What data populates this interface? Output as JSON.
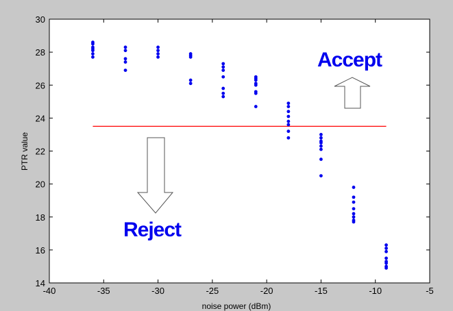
{
  "chart_data": {
    "type": "scatter",
    "xlabel": "noise power (dBm)",
    "ylabel": "PTR value",
    "xlim": [
      -40,
      -5
    ],
    "ylim": [
      14,
      30
    ],
    "xticks": [
      -40,
      -35,
      -30,
      -25,
      -20,
      -15,
      -10,
      -5
    ],
    "yticks": [
      14,
      16,
      18,
      20,
      22,
      24,
      26,
      28,
      30
    ],
    "grid": false,
    "series": [
      {
        "color": "#0000ee",
        "marker": "dot",
        "points": [
          [
            -36,
            28.6
          ],
          [
            -36,
            28.5
          ],
          [
            -36,
            28.3
          ],
          [
            -36,
            28.2
          ],
          [
            -36,
            28.1
          ],
          [
            -36,
            27.9
          ],
          [
            -36,
            27.7
          ],
          [
            -33,
            28.3
          ],
          [
            -33,
            28.1
          ],
          [
            -33,
            27.6
          ],
          [
            -33,
            27.4
          ],
          [
            -33,
            26.9
          ],
          [
            -30,
            28.3
          ],
          [
            -30,
            28.1
          ],
          [
            -30,
            27.9
          ],
          [
            -30,
            27.7
          ],
          [
            -27,
            27.9
          ],
          [
            -27,
            27.8
          ],
          [
            -27,
            27.7
          ],
          [
            -27,
            26.3
          ],
          [
            -27,
            26.1
          ],
          [
            -24,
            27.3
          ],
          [
            -24,
            27.1
          ],
          [
            -24,
            26.9
          ],
          [
            -24,
            26.5
          ],
          [
            -24,
            25.8
          ],
          [
            -24,
            25.5
          ],
          [
            -24,
            25.3
          ],
          [
            -21,
            26.5
          ],
          [
            -21,
            26.4
          ],
          [
            -21,
            26.3
          ],
          [
            -21,
            26.1
          ],
          [
            -21,
            26.0
          ],
          [
            -21,
            25.6
          ],
          [
            -21,
            25.5
          ],
          [
            -21,
            24.7
          ],
          [
            -18,
            24.9
          ],
          [
            -18,
            24.7
          ],
          [
            -18,
            24.4
          ],
          [
            -18,
            24.1
          ],
          [
            -18,
            23.8
          ],
          [
            -18,
            23.6
          ],
          [
            -18,
            23.2
          ],
          [
            -18,
            22.8
          ],
          [
            -15,
            23.0
          ],
          [
            -15,
            22.8
          ],
          [
            -15,
            22.6
          ],
          [
            -15,
            22.5
          ],
          [
            -15,
            22.3
          ],
          [
            -15,
            22.1
          ],
          [
            -15,
            21.5
          ],
          [
            -15,
            20.5
          ],
          [
            -12,
            19.8
          ],
          [
            -12,
            19.2
          ],
          [
            -12,
            18.9
          ],
          [
            -12,
            18.5
          ],
          [
            -12,
            18.2
          ],
          [
            -12,
            18.0
          ],
          [
            -12,
            17.8
          ],
          [
            -12,
            17.7
          ],
          [
            -9,
            16.3
          ],
          [
            -9,
            16.1
          ],
          [
            -9,
            15.9
          ],
          [
            -9,
            15.5
          ],
          [
            -9,
            15.3
          ],
          [
            -9,
            15.2
          ],
          [
            -9,
            15.0
          ],
          [
            -9,
            14.9
          ]
        ]
      }
    ],
    "threshold_line": {
      "x": [
        -36,
        -9
      ],
      "y": 23.5,
      "color": "#ff0000"
    },
    "annotations": {
      "accept_label": "Accept",
      "reject_label": "Reject"
    },
    "annotation_color": "#0000ee"
  }
}
